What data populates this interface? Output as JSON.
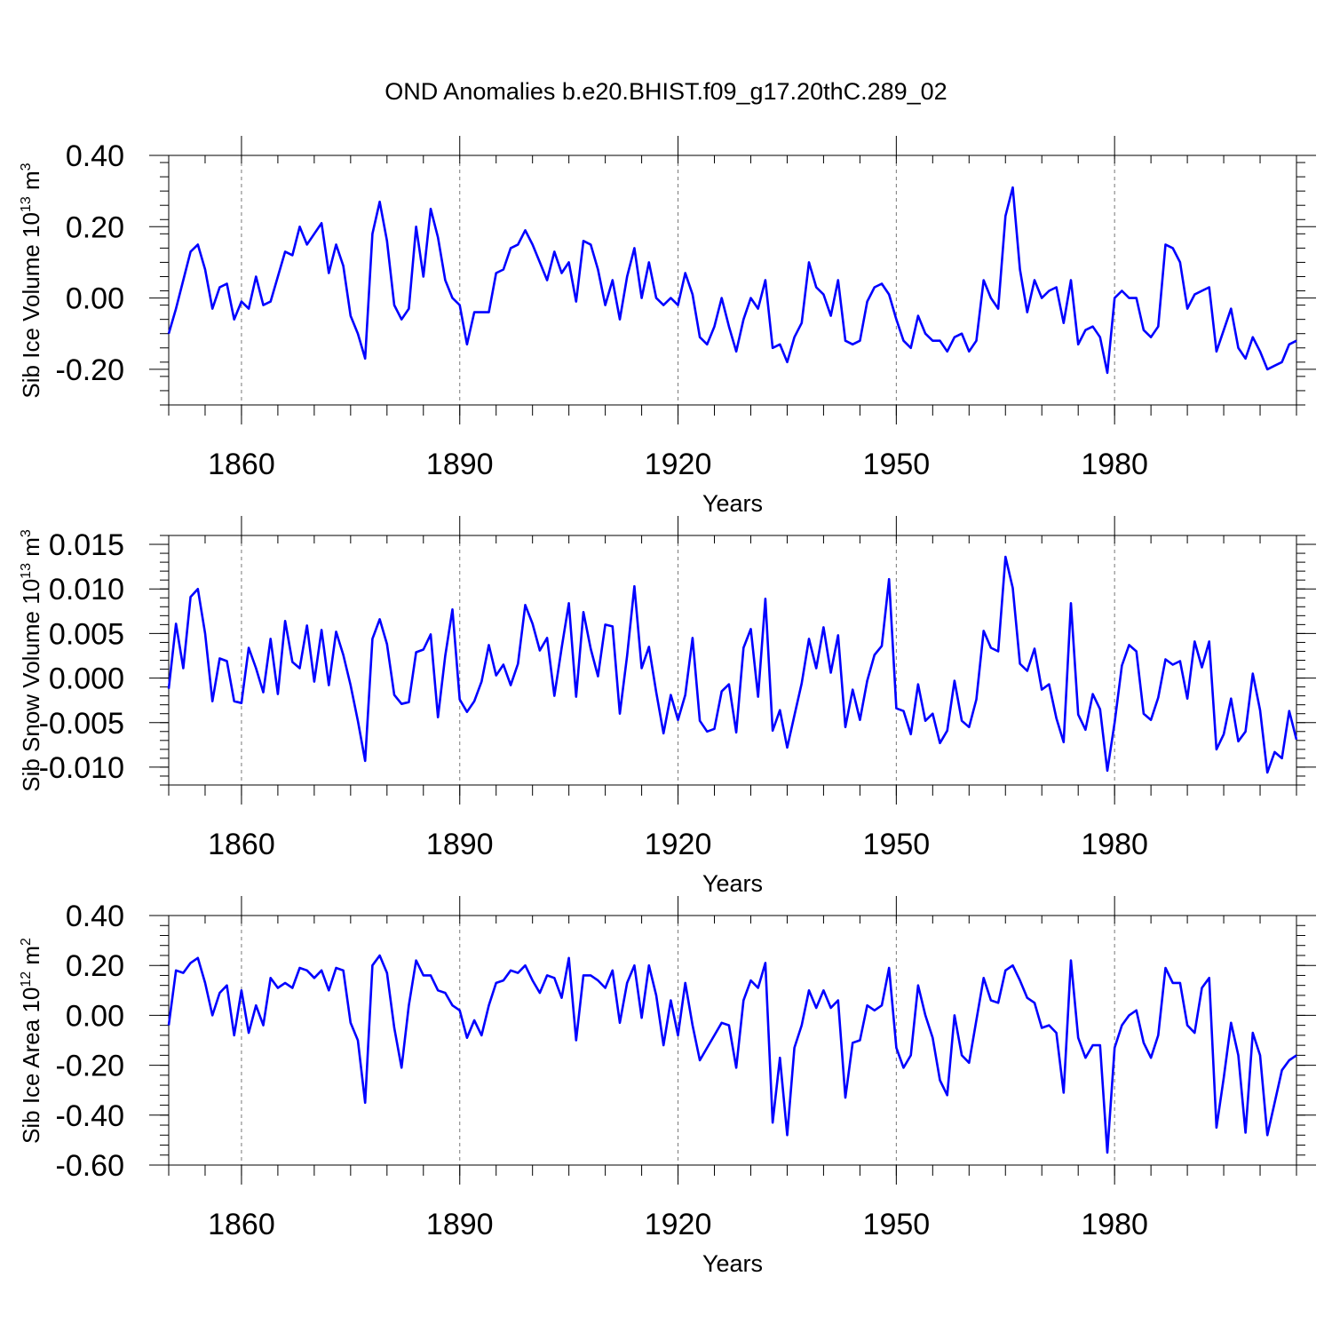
{
  "title": "OND Anomalies b.e20.BHIST.f09_g17.20thC.289_02",
  "colors": {
    "line": "#0000ff",
    "axis": "#000000",
    "grid": "#777777"
  },
  "chart_data": [
    {
      "type": "line",
      "id": "sib-ice-volume",
      "ylabel": {
        "main": "Sib Ice Volume 10",
        "sup": "13",
        "unit": " m",
        "unit_sup": "3"
      },
      "xlabel": "Years",
      "xlim": [
        1850,
        2005
      ],
      "ylim": [
        -0.3,
        0.4
      ],
      "xticks": [
        1860,
        1890,
        1920,
        1950,
        1980
      ],
      "xtick_labels": [
        "1860",
        "1890",
        "1920",
        "1950",
        "1980"
      ],
      "yticks": [
        0.4,
        0.2,
        0.0,
        -0.2
      ],
      "ytick_labels": [
        "0.40",
        "0.20",
        "0.00",
        "-0.20"
      ],
      "x_start": 1850,
      "series": [
        {
          "name": "Sib Ice Volume",
          "values": [
            -0.1,
            -0.03,
            0.05,
            0.13,
            0.15,
            0.08,
            -0.03,
            0.03,
            0.04,
            -0.06,
            -0.01,
            -0.03,
            0.06,
            -0.02,
            -0.01,
            0.06,
            0.13,
            0.12,
            0.2,
            0.15,
            0.18,
            0.21,
            0.07,
            0.15,
            0.09,
            -0.05,
            -0.1,
            -0.17,
            0.18,
            0.27,
            0.16,
            -0.02,
            -0.06,
            -0.03,
            0.2,
            0.06,
            0.25,
            0.17,
            0.05,
            0.0,
            -0.02,
            -0.13,
            -0.04,
            -0.04,
            -0.04,
            0.07,
            0.08,
            0.14,
            0.15,
            0.19,
            0.15,
            0.1,
            0.05,
            0.13,
            0.07,
            0.1,
            -0.01,
            0.16,
            0.15,
            0.08,
            -0.02,
            0.05,
            -0.06,
            0.06,
            0.14,
            0.0,
            0.1,
            0.0,
            -0.02,
            0.0,
            -0.02,
            0.07,
            0.01,
            -0.11,
            -0.13,
            -0.08,
            0.0,
            -0.08,
            -0.15,
            -0.06,
            0.0,
            -0.03,
            0.05,
            -0.14,
            -0.13,
            -0.18,
            -0.11,
            -0.07,
            0.1,
            0.03,
            0.01,
            -0.05,
            0.05,
            -0.12,
            -0.13,
            -0.12,
            -0.01,
            0.03,
            0.04,
            0.01,
            -0.06,
            -0.12,
            -0.14,
            -0.05,
            -0.1,
            -0.12,
            -0.12,
            -0.15,
            -0.11,
            -0.1,
            -0.15,
            -0.12,
            0.05,
            0.0,
            -0.03,
            0.23,
            0.31,
            0.08,
            -0.04,
            0.05,
            0.0,
            0.02,
            0.03,
            -0.07,
            0.05,
            -0.13,
            -0.09,
            -0.08,
            -0.11,
            -0.21,
            0.0,
            0.02,
            0.0,
            0.0,
            -0.09,
            -0.11,
            -0.08,
            0.15,
            0.14,
            0.1,
            -0.03,
            0.01,
            0.02,
            0.03,
            -0.15,
            -0.09,
            -0.03,
            -0.14,
            -0.17,
            -0.11,
            -0.15,
            -0.2,
            -0.19,
            -0.18,
            -0.13,
            -0.12
          ]
        }
      ]
    },
    {
      "type": "line",
      "id": "sib-snow-volume",
      "ylabel": {
        "main": "Sib Snow Volume 10",
        "sup": "13",
        "unit": " m",
        "unit_sup": "3"
      },
      "xlabel": "Years",
      "xlim": [
        1850,
        2005
      ],
      "ylim": [
        -0.012,
        0.016
      ],
      "xticks": [
        1860,
        1890,
        1920,
        1950,
        1980
      ],
      "xtick_labels": [
        "1860",
        "1890",
        "1920",
        "1950",
        "1980"
      ],
      "yticks": [
        0.015,
        0.01,
        0.005,
        0.0,
        -0.005,
        -0.01
      ],
      "ytick_labels": [
        "0.015",
        "0.010",
        "0.005",
        "0.000",
        "-0.005",
        "-0.010"
      ],
      "x_start": 1850,
      "series": [
        {
          "name": "Sib Snow Volume",
          "values": [
            -0.0012,
            0.0061,
            0.0011,
            0.0091,
            0.01,
            0.005,
            -0.0026,
            0.0022,
            0.0019,
            -0.0026,
            -0.0028,
            0.0034,
            0.0011,
            -0.0016,
            0.0044,
            -0.0018,
            0.0064,
            0.0018,
            0.0011,
            0.0059,
            -0.0004,
            0.0054,
            -0.0008,
            0.0052,
            0.0026,
            -0.0008,
            -0.0048,
            -0.0093,
            0.0044,
            0.0066,
            0.0038,
            -0.0019,
            -0.0029,
            -0.0027,
            0.0029,
            0.0032,
            0.0049,
            -0.0044,
            0.0025,
            0.0077,
            -0.0024,
            -0.0038,
            -0.0026,
            -0.0004,
            0.0037,
            0.0003,
            0.0015,
            -0.0008,
            0.0016,
            0.0082,
            0.0061,
            0.0031,
            0.0045,
            -0.002,
            0.0034,
            0.0084,
            -0.0021,
            0.0074,
            0.0033,
            0.0002,
            0.006,
            0.0058,
            -0.004,
            0.0025,
            0.0103,
            0.0011,
            0.0035,
            -0.0016,
            -0.0062,
            -0.0019,
            -0.0047,
            -0.0019,
            0.0045,
            -0.0048,
            -0.006,
            -0.0057,
            -0.0015,
            -0.0007,
            -0.0061,
            0.0034,
            0.0055,
            -0.0021,
            0.0089,
            -0.0059,
            -0.0036,
            -0.0078,
            -0.0042,
            -0.0006,
            0.0044,
            0.0011,
            0.0057,
            0.0006,
            0.0048,
            -0.0055,
            -0.0013,
            -0.0047,
            -0.0003,
            0.0026,
            0.0036,
            0.0111,
            -0.0034,
            -0.0037,
            -0.0063,
            -0.0007,
            -0.0048,
            -0.004,
            -0.0073,
            -0.0059,
            -0.0003,
            -0.0048,
            -0.0055,
            -0.0024,
            0.0053,
            0.0034,
            0.003,
            0.0136,
            0.0101,
            0.0016,
            0.0008,
            0.0033,
            -0.0013,
            -0.0007,
            -0.0045,
            -0.0072,
            0.0084,
            -0.0041,
            -0.0058,
            -0.0018,
            -0.0035,
            -0.0104,
            -0.005,
            0.0014,
            0.0037,
            0.003,
            -0.004,
            -0.0047,
            -0.0022,
            0.0021,
            0.0015,
            0.0019,
            -0.0023,
            0.0041,
            0.0012,
            0.0041,
            -0.008,
            -0.0063,
            -0.0023,
            -0.0071,
            -0.006,
            0.0005,
            -0.0036,
            -0.0106,
            -0.0083,
            -0.009,
            -0.0037,
            -0.0069
          ]
        }
      ]
    },
    {
      "type": "line",
      "id": "sib-ice-area",
      "ylabel": {
        "main": "Sib Ice Area 10",
        "sup": "12",
        "unit": " m",
        "unit_sup": "2"
      },
      "xlabel": "Years",
      "xlim": [
        1850,
        2005
      ],
      "ylim": [
        -0.6,
        0.4
      ],
      "xticks": [
        1860,
        1890,
        1920,
        1950,
        1980
      ],
      "xtick_labels": [
        "1860",
        "1890",
        "1920",
        "1950",
        "1980"
      ],
      "yticks": [
        0.4,
        0.2,
        0.0,
        -0.2,
        -0.4,
        -0.6
      ],
      "ytick_labels": [
        "0.40",
        "0.20",
        "0.00",
        "-0.20",
        "-0.40",
        "-0.60"
      ],
      "x_start": 1850,
      "series": [
        {
          "name": "Sib Ice Area",
          "values": [
            -0.04,
            0.18,
            0.17,
            0.21,
            0.23,
            0.13,
            0.0,
            0.09,
            0.12,
            -0.08,
            0.1,
            -0.07,
            0.04,
            -0.04,
            0.15,
            0.11,
            0.13,
            0.11,
            0.19,
            0.18,
            0.15,
            0.18,
            0.1,
            0.19,
            0.18,
            -0.03,
            -0.1,
            -0.35,
            0.2,
            0.24,
            0.17,
            -0.05,
            -0.21,
            0.04,
            0.22,
            0.16,
            0.16,
            0.1,
            0.09,
            0.04,
            0.02,
            -0.09,
            -0.02,
            -0.08,
            0.04,
            0.13,
            0.14,
            0.18,
            0.17,
            0.2,
            0.14,
            0.09,
            0.16,
            0.15,
            0.07,
            0.23,
            -0.1,
            0.16,
            0.16,
            0.14,
            0.11,
            0.18,
            -0.03,
            0.13,
            0.2,
            -0.01,
            0.2,
            0.08,
            -0.12,
            0.06,
            -0.08,
            0.13,
            -0.04,
            -0.18,
            -0.13,
            -0.08,
            -0.03,
            -0.04,
            -0.21,
            0.06,
            0.14,
            0.11,
            0.21,
            -0.43,
            -0.17,
            -0.48,
            -0.13,
            -0.04,
            0.1,
            0.03,
            0.1,
            0.03,
            0.06,
            -0.33,
            -0.11,
            -0.1,
            0.04,
            0.02,
            0.04,
            0.19,
            -0.13,
            -0.21,
            -0.16,
            0.12,
            0.0,
            -0.09,
            -0.26,
            -0.32,
            0.0,
            -0.16,
            -0.19,
            -0.02,
            0.15,
            0.06,
            0.05,
            0.18,
            0.2,
            0.14,
            0.07,
            0.05,
            -0.05,
            -0.04,
            -0.07,
            -0.31,
            0.22,
            -0.09,
            -0.17,
            -0.12,
            -0.12,
            -0.55,
            -0.13,
            -0.04,
            0.0,
            0.02,
            -0.11,
            -0.17,
            -0.08,
            0.19,
            0.13,
            0.13,
            -0.04,
            -0.07,
            0.11,
            0.15,
            -0.45,
            -0.25,
            -0.03,
            -0.16,
            -0.47,
            -0.07,
            -0.16,
            -0.48,
            -0.35,
            -0.22,
            -0.18,
            -0.16
          ]
        }
      ]
    }
  ]
}
